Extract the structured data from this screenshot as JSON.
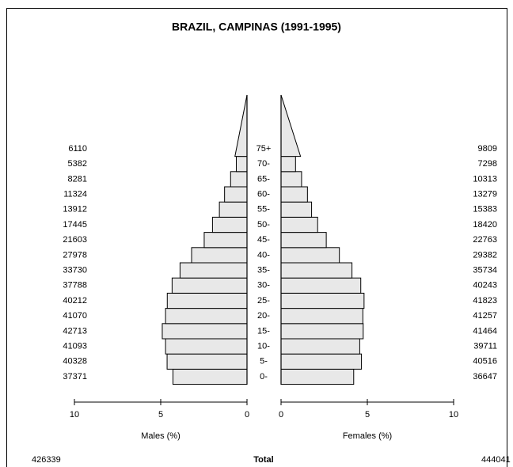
{
  "chart_data": {
    "type": "population-pyramid",
    "title": "BRAZIL, CAMPINAS (1991-1995)",
    "categories": [
      "0-",
      "5-",
      "10-",
      "15-",
      "20-",
      "25-",
      "30-",
      "35-",
      "40-",
      "45-",
      "50-",
      "55-",
      "60-",
      "65-",
      "70-",
      "75+"
    ],
    "series": [
      {
        "side": "left",
        "axis_label": "Males (%)",
        "color": "#e8e8e8",
        "values": [
          4.29,
          4.63,
          4.72,
          4.91,
          4.72,
          4.62,
          4.34,
          3.88,
          3.21,
          2.48,
          2.0,
          1.6,
          1.3,
          0.95,
          0.62,
          0.7
        ],
        "counts": [
          37371,
          40328,
          41093,
          42713,
          41070,
          40212,
          37788,
          33730,
          27978,
          21603,
          17445,
          13912,
          11324,
          8281,
          5382,
          6110
        ],
        "total": 426339
      },
      {
        "side": "right",
        "axis_label": "Females (%)",
        "color": "#e8e8e8",
        "values": [
          4.21,
          4.66,
          4.56,
          4.76,
          4.74,
          4.81,
          4.62,
          4.11,
          3.38,
          2.62,
          2.12,
          1.77,
          1.53,
          1.19,
          0.84,
          1.13
        ],
        "counts": [
          36647,
          40516,
          39711,
          41464,
          41257,
          41823,
          40243,
          35734,
          29382,
          22763,
          18420,
          15383,
          13279,
          10313,
          7298,
          9809
        ],
        "total": 444041
      }
    ],
    "total_label": "Total",
    "xlim": [
      0,
      10
    ],
    "xticks": [
      0,
      5,
      10
    ]
  }
}
